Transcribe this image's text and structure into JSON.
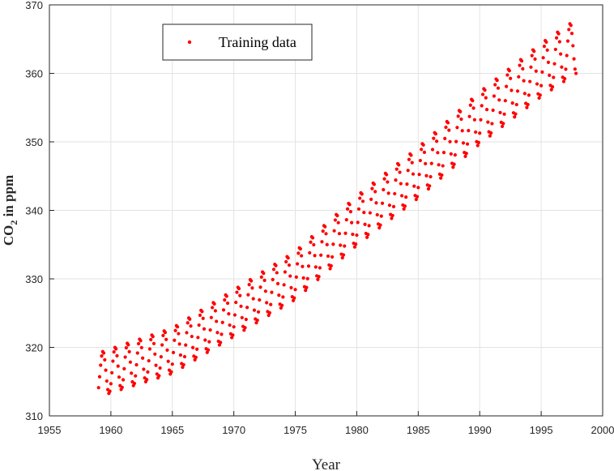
{
  "chart_data": {
    "type": "scatter",
    "xlabel": "Year",
    "ylabel": "CO",
    "ylabel_subscript": "2",
    "ylabel_suffix": " in ppm",
    "xlim": [
      1955,
      2000
    ],
    "ylim": [
      310,
      370
    ],
    "xticks": [
      1955,
      1960,
      1965,
      1970,
      1975,
      1980,
      1985,
      1990,
      1995,
      2000
    ],
    "yticks": [
      310,
      320,
      330,
      340,
      350,
      360,
      370
    ],
    "grid": true,
    "legend_position": "top-left",
    "series": [
      {
        "name": "Training data",
        "color": "#ff0000",
        "marker": "dot",
        "sampling": "monthly",
        "x_start": 1959.0,
        "x_end": 1997.9,
        "seasonal_amplitude_ppm": 3.2,
        "trend_points": [
          [
            1959,
            316
          ],
          [
            1965,
            319.5
          ],
          [
            1970,
            325
          ],
          [
            1975,
            330.5
          ],
          [
            1980,
            338.5
          ],
          [
            1985,
            345.5
          ],
          [
            1990,
            353.5
          ],
          [
            1995,
            360.5
          ],
          [
            1997.9,
            364
          ]
        ]
      }
    ]
  }
}
